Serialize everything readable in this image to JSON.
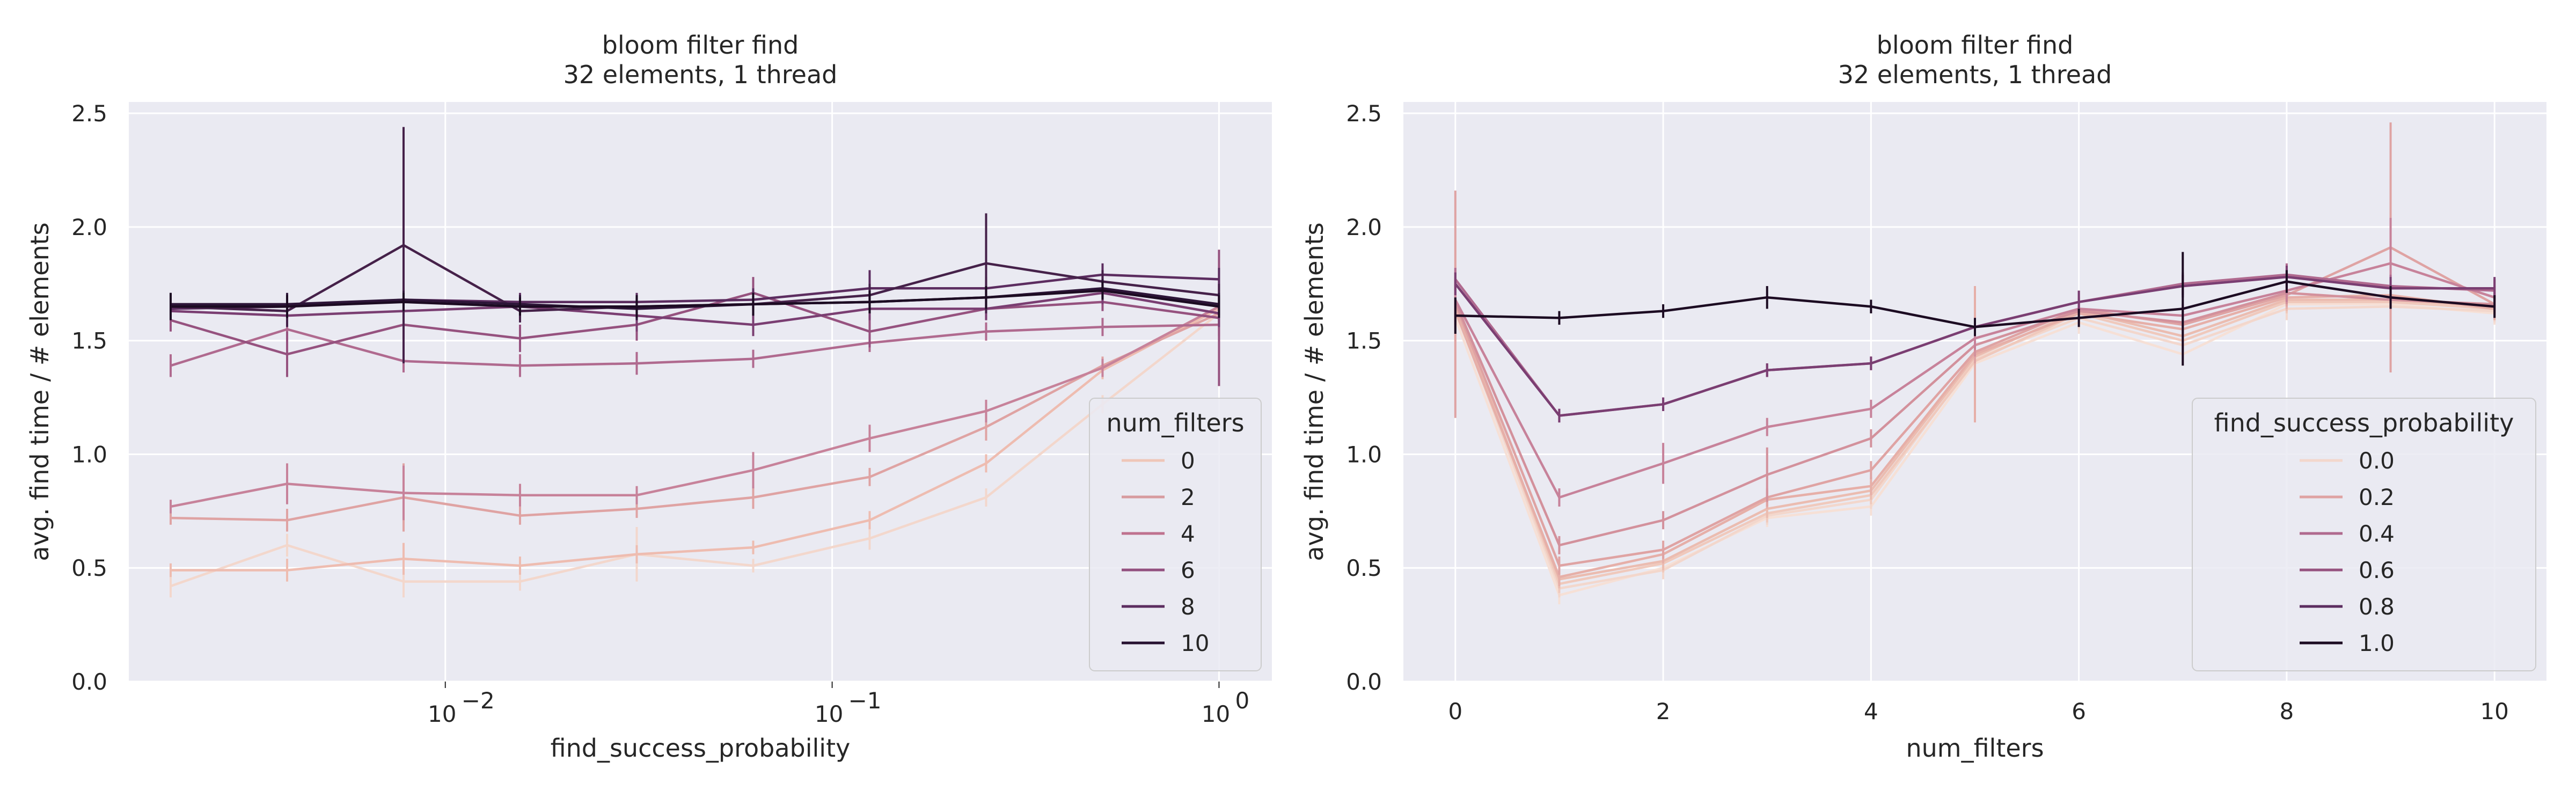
{
  "figure": {
    "background": "#ffffff",
    "axes_background": "#eaeaf2",
    "grid_color": "#ffffff"
  },
  "chart_data": [
    {
      "type": "line",
      "title": [
        "bloom filter find",
        "32 elements, 1 thread"
      ],
      "xlabel": "find_success_probability",
      "ylabel": "avg. find time / # elements",
      "xscale": "log",
      "xlim": [
        0.00152,
        1.37
      ],
      "ylim": [
        0,
        2.55
      ],
      "yticks": [
        0.0,
        0.5,
        1.0,
        1.5,
        2.0,
        2.5
      ],
      "ytick_labels": [
        "0.0",
        "0.5",
        "1.0",
        "1.5",
        "2.0",
        "2.5"
      ],
      "xticks": [
        0.01,
        0.1,
        1
      ],
      "xtick_labels": [
        [
          "10",
          "−2"
        ],
        [
          "10",
          "−1"
        ],
        [
          "10",
          "0"
        ]
      ],
      "grid": true,
      "legend": {
        "title": "num_filters",
        "placement": "lower-right",
        "entries": [
          {
            "label": "0",
            "color": "#efc6b8"
          },
          {
            "label": "2",
            "color": "#d79b9f"
          },
          {
            "label": "4",
            "color": "#bf728f"
          },
          {
            "label": "6",
            "color": "#93507f"
          },
          {
            "label": "8",
            "color": "#5c2d60"
          },
          {
            "label": "10",
            "color": "#261130"
          }
        ]
      },
      "x": [
        0.00195,
        0.0039,
        0.0078,
        0.0156,
        0.03125,
        0.0625,
        0.125,
        0.25,
        0.5,
        1.0
      ],
      "series": [
        {
          "color": "#f3d7cc",
          "values": [
            0.42,
            0.6,
            0.44,
            0.44,
            0.56,
            0.51,
            0.63,
            0.81,
            1.22,
            1.62
          ],
          "errors": [
            0.05,
            0.05,
            0.07,
            0.04,
            0.12,
            0.03,
            0.05,
            0.04,
            0.04,
            0.25
          ]
        },
        {
          "color": "#eebcb0",
          "values": [
            0.49,
            0.49,
            0.54,
            0.51,
            0.56,
            0.59,
            0.71,
            0.96,
            1.37,
            1.64
          ],
          "errors": [
            0.03,
            0.05,
            0.07,
            0.04,
            0.04,
            0.03,
            0.04,
            0.04,
            0.04,
            0.1
          ]
        },
        {
          "color": "#dfa3a3",
          "values": [
            0.72,
            0.71,
            0.81,
            0.73,
            0.76,
            0.81,
            0.9,
            1.12,
            1.39,
            1.62
          ],
          "errors": [
            0.03,
            0.05,
            0.15,
            0.04,
            0.04,
            0.05,
            0.04,
            0.06,
            0.04,
            0.1
          ]
        },
        {
          "color": "#c7829a",
          "values": [
            0.77,
            0.87,
            0.83,
            0.82,
            0.82,
            0.93,
            1.07,
            1.19,
            1.38,
            1.65
          ],
          "errors": [
            0.03,
            0.09,
            0.12,
            0.05,
            0.04,
            0.08,
            0.06,
            0.05,
            0.04,
            0.1
          ]
        },
        {
          "color": "#b06a8f",
          "values": [
            1.39,
            1.55,
            1.41,
            1.39,
            1.4,
            1.42,
            1.49,
            1.54,
            1.56,
            1.57
          ],
          "errors": [
            0.05,
            0.05,
            0.05,
            0.05,
            0.05,
            0.04,
            0.04,
            0.04,
            0.04,
            0.05
          ]
        },
        {
          "color": "#96527f",
          "values": [
            1.59,
            1.44,
            1.57,
            1.51,
            1.57,
            1.71,
            1.54,
            1.64,
            1.67,
            1.6
          ],
          "errors": [
            0.05,
            0.1,
            0.06,
            0.06,
            0.07,
            0.07,
            0.07,
            0.05,
            0.04,
            0.3
          ]
        },
        {
          "color": "#7a3e72",
          "values": [
            1.63,
            1.61,
            1.63,
            1.65,
            1.61,
            1.57,
            1.64,
            1.64,
            1.71,
            1.62
          ],
          "errors": [
            0.04,
            0.04,
            0.05,
            0.05,
            0.07,
            0.05,
            0.05,
            0.05,
            0.05,
            0.06
          ]
        },
        {
          "color": "#5c2d60",
          "values": [
            1.64,
            1.65,
            1.68,
            1.67,
            1.67,
            1.68,
            1.73,
            1.73,
            1.79,
            1.77
          ],
          "errors": [
            0.04,
            0.04,
            0.05,
            0.04,
            0.04,
            0.05,
            0.08,
            0.05,
            0.05,
            0.05
          ]
        },
        {
          "color": "#452149",
          "values": [
            1.65,
            1.63,
            1.92,
            1.63,
            1.65,
            1.66,
            1.7,
            1.84,
            1.76,
            1.7
          ],
          "errors": [
            0.04,
            0.07,
            0.52,
            0.05,
            0.04,
            0.05,
            0.05,
            0.22,
            0.05,
            0.05
          ]
        },
        {
          "color": "#2d1538",
          "values": [
            1.66,
            1.66,
            1.68,
            1.66,
            1.64,
            1.66,
            1.67,
            1.69,
            1.73,
            1.66
          ],
          "errors": [
            0.05,
            0.05,
            0.04,
            0.04,
            0.05,
            0.05,
            0.05,
            0.05,
            0.04,
            0.05
          ]
        },
        {
          "color": "#1c0b22",
          "values": [
            1.65,
            1.65,
            1.67,
            1.65,
            1.65,
            1.66,
            1.67,
            1.69,
            1.72,
            1.65
          ],
          "errors": [
            0.06,
            0.05,
            0.04,
            0.04,
            0.05,
            0.05,
            0.05,
            0.05,
            0.04,
            0.05
          ]
        }
      ]
    },
    {
      "type": "line",
      "title": [
        "bloom filter find",
        "32 elements, 1 thread"
      ],
      "xlabel": "num_filters",
      "ylabel": "avg. find time / # elements",
      "xscale": "linear",
      "xlim": [
        -0.5,
        10.5
      ],
      "ylim": [
        0,
        2.55
      ],
      "yticks": [
        0.0,
        0.5,
        1.0,
        1.5,
        2.0,
        2.5
      ],
      "ytick_labels": [
        "0.0",
        "0.5",
        "1.0",
        "1.5",
        "2.0",
        "2.5"
      ],
      "xticks": [
        0,
        2,
        4,
        6,
        8,
        10
      ],
      "xtick_labels": [
        "0",
        "2",
        "4",
        "6",
        "8",
        "10"
      ],
      "grid": true,
      "legend": {
        "title": "find_success_probability",
        "placement": "lower-right",
        "entries": [
          {
            "label": "0.0",
            "color": "#f3d7cc"
          },
          {
            "label": "0.2",
            "color": "#dfa3a3"
          },
          {
            "label": "0.4",
            "color": "#b06a8f"
          },
          {
            "label": "0.6",
            "color": "#96527f"
          },
          {
            "label": "0.8",
            "color": "#5c2d60"
          },
          {
            "label": "1.0",
            "color": "#1c0b22"
          }
        ]
      },
      "x": [
        0,
        1,
        2,
        3,
        4,
        5,
        6,
        7,
        8,
        9,
        10
      ],
      "series": [
        {
          "color": "#f6e0d6",
          "values": [
            1.6,
            0.38,
            0.5,
            0.72,
            0.77,
            1.4,
            1.58,
            1.44,
            1.66,
            1.66,
            1.62
          ],
          "errors": [
            0.2,
            0.04,
            0.04,
            0.04,
            0.04,
            0.05,
            0.05,
            0.05,
            0.05,
            0.04,
            0.05
          ]
        },
        {
          "color": "#f3d7cc",
          "values": [
            1.64,
            0.41,
            0.49,
            0.73,
            0.8,
            1.42,
            1.6,
            1.48,
            1.64,
            1.65,
            1.63
          ],
          "errors": [
            0.3,
            0.04,
            0.04,
            0.04,
            0.04,
            0.05,
            0.05,
            0.05,
            0.05,
            0.04,
            0.05
          ]
        },
        {
          "color": "#f0c9bc",
          "values": [
            1.66,
            0.43,
            0.52,
            0.74,
            0.82,
            1.41,
            1.62,
            1.5,
            1.67,
            1.67,
            1.64
          ],
          "errors": [
            0.1,
            0.04,
            0.04,
            0.04,
            0.04,
            0.05,
            0.05,
            0.05,
            0.05,
            0.04,
            0.05
          ]
        },
        {
          "color": "#ebbcb0",
          "values": [
            1.65,
            0.45,
            0.53,
            0.76,
            0.84,
            1.43,
            1.63,
            1.52,
            1.68,
            1.68,
            1.65
          ],
          "errors": [
            0.1,
            0.04,
            0.04,
            0.04,
            0.04,
            0.05,
            0.05,
            0.05,
            0.05,
            0.04,
            0.05
          ]
        },
        {
          "color": "#e6afa8",
          "values": [
            1.63,
            0.46,
            0.56,
            0.8,
            0.86,
            1.44,
            1.62,
            1.55,
            1.69,
            1.7,
            1.64
          ],
          "errors": [
            0.1,
            0.04,
            0.04,
            0.04,
            0.04,
            0.3,
            0.05,
            0.05,
            0.05,
            0.04,
            0.05
          ]
        },
        {
          "color": "#dfa3a3",
          "values": [
            1.66,
            0.51,
            0.58,
            0.81,
            0.93,
            1.45,
            1.64,
            1.57,
            1.7,
            1.91,
            1.66
          ],
          "errors": [
            0.5,
            0.04,
            0.04,
            0.04,
            0.04,
            0.05,
            0.05,
            0.05,
            0.05,
            0.55,
            0.05
          ]
        },
        {
          "color": "#d3919c",
          "values": [
            1.67,
            0.6,
            0.71,
            0.91,
            1.07,
            1.48,
            1.63,
            1.58,
            1.71,
            1.68,
            1.66
          ],
          "errors": [
            0.1,
            0.04,
            0.04,
            0.12,
            0.04,
            0.05,
            0.05,
            0.05,
            0.05,
            0.04,
            0.05
          ]
        },
        {
          "color": "#c7829a",
          "values": [
            1.68,
            0.81,
            0.96,
            1.12,
            1.2,
            1.51,
            1.64,
            1.61,
            1.72,
            1.84,
            1.69
          ],
          "errors": [
            0.1,
            0.04,
            0.09,
            0.04,
            0.04,
            0.05,
            0.05,
            0.05,
            0.05,
            0.2,
            0.05
          ]
        },
        {
          "color": "#b06a8f",
          "values": [
            1.77,
            1.17,
            1.22,
            1.37,
            1.4,
            1.56,
            1.67,
            1.75,
            1.79,
            1.74,
            1.72
          ],
          "errors": [
            0.05,
            0.03,
            0.03,
            0.03,
            0.03,
            0.04,
            0.05,
            0.05,
            0.05,
            0.05,
            0.05
          ]
        },
        {
          "color": "#7a3e72",
          "values": [
            1.75,
            1.17,
            1.22,
            1.37,
            1.4,
            1.56,
            1.67,
            1.74,
            1.78,
            1.73,
            1.73
          ],
          "errors": [
            0.05,
            0.03,
            0.03,
            0.03,
            0.03,
            0.04,
            0.05,
            0.05,
            0.05,
            0.05,
            0.05
          ]
        },
        {
          "color": "#1c0b22",
          "values": [
            1.61,
            1.6,
            1.63,
            1.69,
            1.65,
            1.56,
            1.6,
            1.64,
            1.76,
            1.69,
            1.65
          ],
          "errors": [
            0.08,
            0.03,
            0.03,
            0.05,
            0.03,
            0.04,
            0.04,
            0.25,
            0.05,
            0.05,
            0.05
          ]
        }
      ]
    }
  ]
}
